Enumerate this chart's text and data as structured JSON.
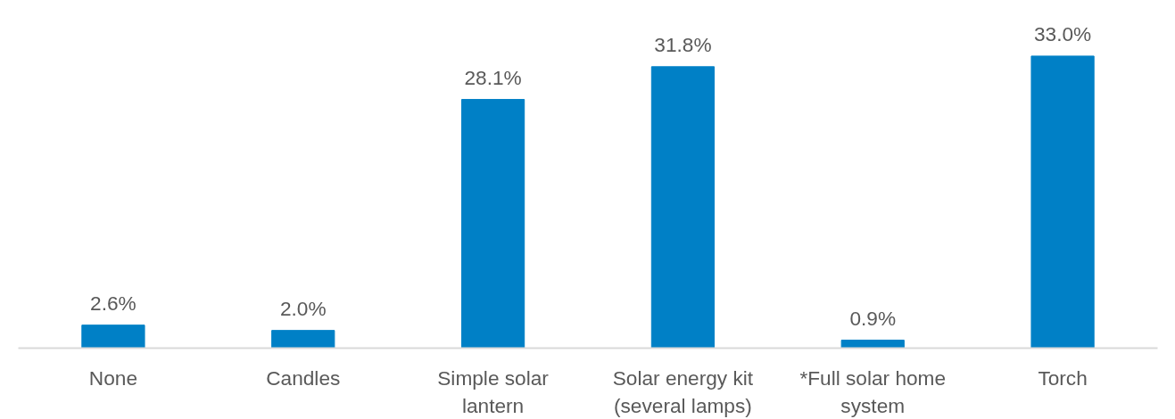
{
  "chart_data": {
    "type": "bar",
    "categories": [
      "None",
      "Candles",
      "Simple solar lantern",
      "Solar energy kit (several lamps)",
      "*Full solar home system",
      "Torch"
    ],
    "values": [
      2.6,
      2.0,
      28.1,
      31.8,
      0.9,
      33.0
    ],
    "value_labels": [
      "2.6%",
      "2.0%",
      "28.1%",
      "31.8%",
      "0.9%",
      "33.0%"
    ],
    "color": "#0080c6"
  }
}
